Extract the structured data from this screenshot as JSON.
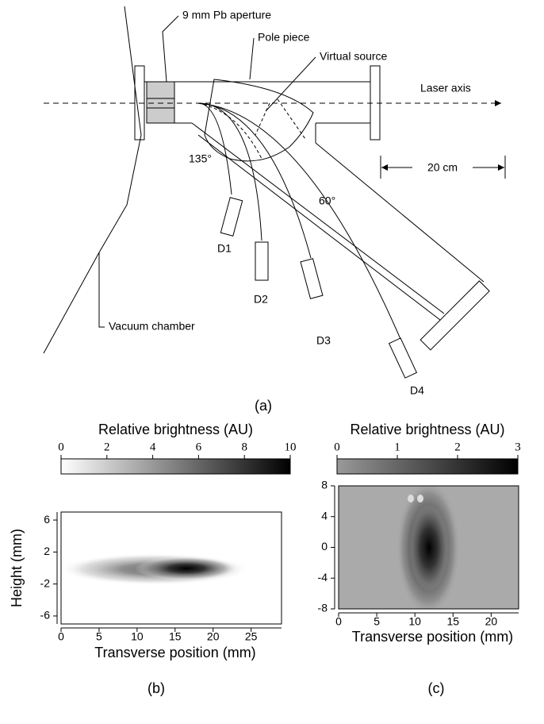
{
  "diagram": {
    "labels": {
      "aperture": "9 mm Pb aperture",
      "pole_piece": "Pole piece",
      "virtual_source": "Virtual source",
      "laser_axis": "Laser axis",
      "distance": "20 cm",
      "angle_135": "135°",
      "angle_60": "60°",
      "d1": "D1",
      "d2": "D2",
      "d3": "D3",
      "d4": "D4",
      "vacuum": "Vacuum chamber"
    },
    "caption": "(a)"
  },
  "panels": [
    {
      "caption": "(b)",
      "colorbar_label": "Relative brightness (AU)",
      "colorbar_lim": [
        0,
        10
      ],
      "colorbar_ticks": [
        0,
        2,
        4,
        6,
        8,
        10
      ],
      "xlabel": "Transverse position (mm)",
      "ylabel": "Height (mm)",
      "xlim": [
        0,
        29
      ],
      "xticks": [
        0,
        5,
        10,
        15,
        20,
        25
      ],
      "ylim": [
        -7,
        7
      ],
      "yticks": [
        -6,
        -2,
        2,
        6
      ]
    },
    {
      "caption": "(c)",
      "colorbar_label": "Relative brightness (AU)",
      "colorbar_lim": [
        0,
        3
      ],
      "colorbar_ticks": [
        0,
        1,
        2,
        3
      ],
      "xlabel": "Transverse position (mm)",
      "xlim": [
        0,
        23.6
      ],
      "xticks": [
        0,
        5,
        10,
        15,
        20
      ],
      "ylim": [
        -8,
        8
      ],
      "yticks": [
        -8,
        -4,
        0,
        4,
        8
      ]
    }
  ]
}
